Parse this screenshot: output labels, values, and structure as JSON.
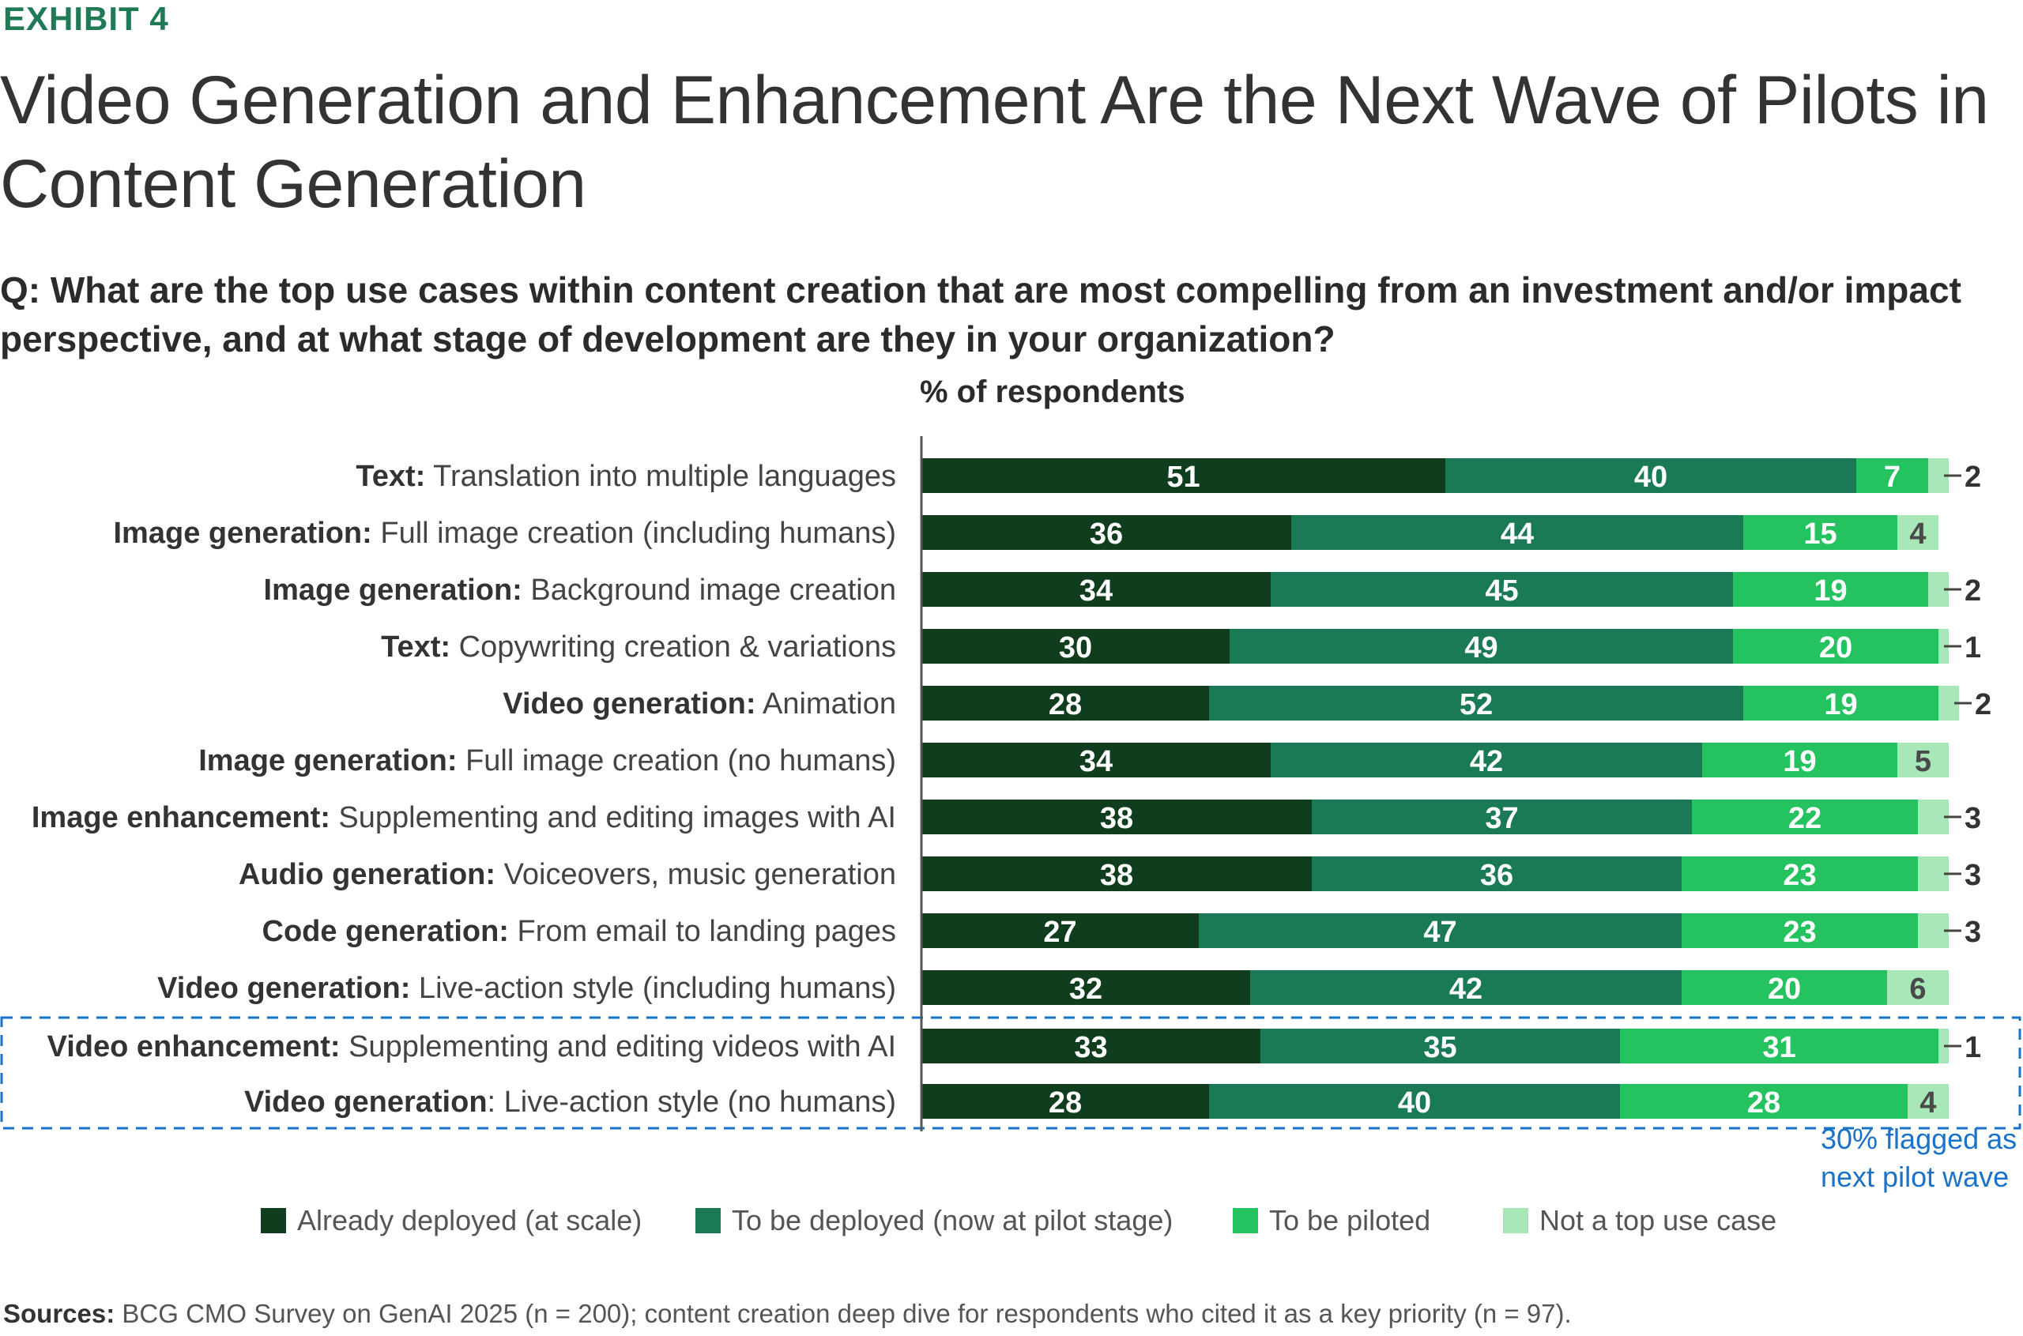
{
  "header": {
    "exhibit": "EXHIBIT 4",
    "title": "Video Generation and Enhancement Are the Next Wave of Pilots in Content Generation",
    "question": "Q: What are the top use cases within content creation that are most compelling from an investment and/or impact perspective, and at what stage of development are they in your organization?"
  },
  "chart_data": {
    "type": "bar",
    "orientation": "horizontal",
    "stacked": true,
    "unit_label": "% of respondents",
    "xlim": [
      0,
      100
    ],
    "categories": [
      {
        "bold": "Text:",
        "rest": " Translation into multiple languages"
      },
      {
        "bold": "Image generation:",
        "rest": " Full image creation (including humans)"
      },
      {
        "bold": "Image generation:",
        "rest": " Background image creation"
      },
      {
        "bold": "Text:",
        "rest": " Copywriting creation & variations"
      },
      {
        "bold": "Video generation:",
        "rest": " Animation"
      },
      {
        "bold": "Image generation:",
        "rest": " Full image creation (no humans)"
      },
      {
        "bold": "Image enhancement:",
        "rest": " Supplementing and editing images with AI"
      },
      {
        "bold": "Audio generation:",
        "rest": " Voiceovers, music generation"
      },
      {
        "bold": "Code generation:",
        "rest": " From email to landing pages"
      },
      {
        "bold": "Video generation:",
        "rest": " Live-action style (including humans)"
      },
      {
        "bold": "Video enhancement:",
        "rest": " Supplementing and editing videos with AI"
      },
      {
        "bold": "Video generation",
        "rest": ": Live-action style (no humans)"
      }
    ],
    "series": [
      {
        "name": "Already deployed (at scale)",
        "color": "#0f3d1e",
        "values": [
          51,
          36,
          34,
          30,
          28,
          34,
          38,
          38,
          27,
          32,
          33,
          28
        ]
      },
      {
        "name": "To be deployed (now at pilot stage)",
        "color": "#1a7a56",
        "values": [
          40,
          44,
          45,
          49,
          52,
          42,
          37,
          36,
          47,
          42,
          35,
          40
        ]
      },
      {
        "name": "To be piloted",
        "color": "#24c35f",
        "values": [
          7,
          15,
          19,
          20,
          19,
          19,
          22,
          23,
          23,
          20,
          31,
          28
        ]
      },
      {
        "name": "Not a top use case",
        "color": "#a8e8b8",
        "values": [
          2,
          4,
          2,
          1,
          2,
          5,
          3,
          3,
          3,
          6,
          1,
          4
        ]
      }
    ],
    "highlight": {
      "rows": [
        10,
        11
      ],
      "note": [
        "30% flagged as",
        "next pilot wave"
      ],
      "color": "#1a72c9"
    }
  },
  "sources": {
    "label": "Sources:",
    "text": " BCG CMO Survey on GenAI 2025 (n = 200); content creation deep dive for respondents who cited it as a key priority (n = 97)."
  }
}
